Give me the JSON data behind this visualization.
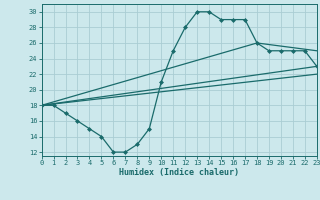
{
  "xlabel": "Humidex (Indice chaleur)",
  "background_color": "#cce8ec",
  "grid_color": "#aacdd4",
  "line_color": "#1a6b6b",
  "x_ticks": [
    0,
    1,
    2,
    3,
    4,
    5,
    6,
    7,
    8,
    9,
    10,
    11,
    12,
    13,
    14,
    15,
    16,
    17,
    18,
    19,
    20,
    21,
    22,
    23
  ],
  "y_ticks": [
    12,
    14,
    16,
    18,
    20,
    22,
    24,
    26,
    28,
    30
  ],
  "xlim": [
    0,
    23
  ],
  "ylim": [
    11.5,
    31
  ],
  "curve_x": [
    0,
    1,
    2,
    3,
    4,
    5,
    6,
    7,
    8,
    9,
    10,
    11,
    12,
    13,
    14,
    15,
    16,
    17,
    18,
    19,
    20,
    21,
    22,
    23
  ],
  "curve_y": [
    18,
    18,
    17,
    16,
    15,
    14,
    12,
    12,
    13,
    15,
    21,
    25,
    28,
    30,
    30,
    29,
    29,
    29,
    26,
    25,
    25,
    25,
    25,
    23
  ],
  "line1_x": [
    0,
    23
  ],
  "line1_y": [
    18,
    23
  ],
  "line2_x": [
    0,
    23
  ],
  "line2_y": [
    18,
    22
  ],
  "line3_x": [
    0,
    18,
    23
  ],
  "line3_y": [
    18,
    26,
    25
  ]
}
